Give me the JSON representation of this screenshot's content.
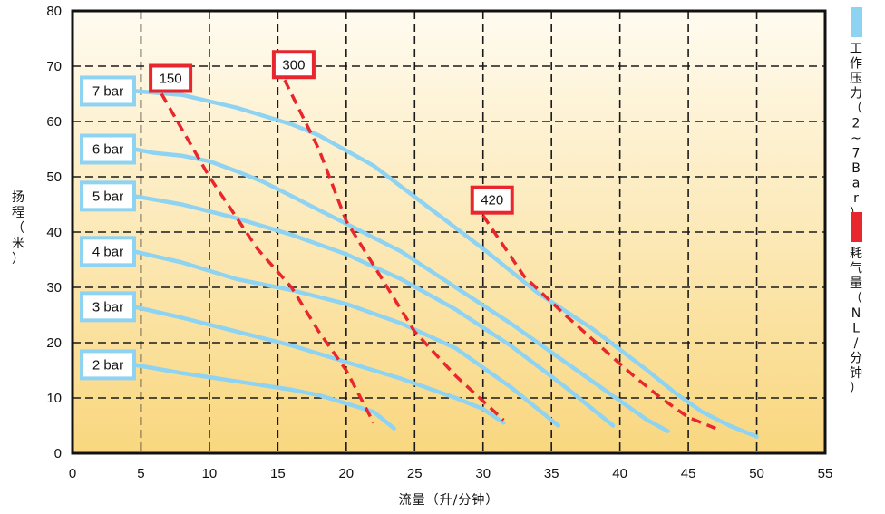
{
  "chart_data": {
    "type": "line",
    "xlabel": "流量（升/分钟）",
    "ylabel": "扬程（米）",
    "xlim": [
      0,
      55
    ],
    "ylim": [
      0,
      80
    ],
    "xticks": [
      "0",
      "5",
      "10",
      "15",
      "20",
      "25",
      "30",
      "35",
      "40",
      "45",
      "50",
      "55"
    ],
    "yticks": [
      "0",
      "10",
      "20",
      "30",
      "40",
      "50",
      "60",
      "70",
      "80"
    ],
    "grid": "dashed",
    "legend": [
      {
        "label": "工作压力（2~7Bar）",
        "color": "#8fd3f2"
      },
      {
        "label": "耗气量（NL/分钟）",
        "color": "#e8262d"
      }
    ],
    "pressure_series": [
      {
        "name": "7 bar",
        "points": [
          [
            4.5,
            65.5
          ],
          [
            8,
            64.8
          ],
          [
            12,
            62.5
          ],
          [
            16,
            59.5
          ],
          [
            18,
            57.5
          ],
          [
            22,
            52
          ],
          [
            26,
            44.5
          ],
          [
            30,
            37
          ],
          [
            34,
            29
          ],
          [
            38,
            22.5
          ],
          [
            42,
            15
          ],
          [
            44,
            11
          ],
          [
            46,
            7.5
          ],
          [
            48,
            5
          ],
          [
            50,
            3
          ]
        ]
      },
      {
        "name": "6 bar",
        "points": [
          [
            4.5,
            55
          ],
          [
            6,
            54.3
          ],
          [
            8,
            53.8
          ],
          [
            10,
            52.8
          ],
          [
            12,
            51
          ],
          [
            14,
            49
          ],
          [
            16,
            46.5
          ],
          [
            18,
            44
          ],
          [
            20,
            41.5
          ],
          [
            24,
            36.5
          ],
          [
            28,
            30
          ],
          [
            32,
            23.5
          ],
          [
            36,
            16.5
          ],
          [
            40,
            9.5
          ],
          [
            42,
            6
          ],
          [
            43.5,
            4
          ]
        ]
      },
      {
        "name": "5 bar",
        "points": [
          [
            4.5,
            46.5
          ],
          [
            8,
            45
          ],
          [
            12,
            42.5
          ],
          [
            16,
            39.5
          ],
          [
            20,
            36
          ],
          [
            24,
            31.5
          ],
          [
            28,
            26
          ],
          [
            32,
            19.5
          ],
          [
            36,
            12
          ],
          [
            38,
            8
          ],
          [
            39.5,
            5
          ]
        ]
      },
      {
        "name": "4 bar",
        "points": [
          [
            4.5,
            36.5
          ],
          [
            8,
            34.5
          ],
          [
            12,
            31.5
          ],
          [
            16,
            29.5
          ],
          [
            20,
            27
          ],
          [
            24,
            23.5
          ],
          [
            28,
            19
          ],
          [
            32,
            12
          ],
          [
            34,
            8
          ],
          [
            35.5,
            5
          ]
        ]
      },
      {
        "name": "3 bar",
        "points": [
          [
            4.5,
            26.5
          ],
          [
            8,
            24.5
          ],
          [
            12,
            22
          ],
          [
            16,
            19.5
          ],
          [
            20,
            16.5
          ],
          [
            24,
            13.5
          ],
          [
            28,
            10
          ],
          [
            30,
            8
          ],
          [
            31.5,
            5.5
          ]
        ]
      },
      {
        "name": "2 bar",
        "points": [
          [
            4.5,
            16
          ],
          [
            8,
            14.5
          ],
          [
            12,
            13
          ],
          [
            16,
            11.5
          ],
          [
            18,
            10.5
          ],
          [
            20,
            9
          ],
          [
            22,
            7.5
          ],
          [
            23.5,
            4.5
          ]
        ]
      }
    ],
    "consumption_series": [
      {
        "name": "150",
        "points": [
          [
            6.5,
            65
          ],
          [
            10,
            50
          ],
          [
            13.5,
            37
          ],
          [
            16,
            30
          ],
          [
            18,
            22
          ],
          [
            20,
            15
          ],
          [
            22,
            5.5
          ]
        ]
      },
      {
        "name": "300",
        "points": [
          [
            15.5,
            67.5
          ],
          [
            18,
            55
          ],
          [
            20,
            42
          ],
          [
            23,
            30
          ],
          [
            25,
            22
          ],
          [
            28,
            14
          ],
          [
            31.5,
            6
          ]
        ]
      },
      {
        "name": "420",
        "points": [
          [
            30,
            43
          ],
          [
            33,
            32
          ],
          [
            36,
            25
          ],
          [
            38.5,
            19.5
          ],
          [
            41,
            14
          ],
          [
            43,
            10
          ],
          [
            45,
            6.5
          ],
          [
            47,
            4.5
          ]
        ]
      }
    ],
    "pressure_labels": [
      "7 bar",
      "6 bar",
      "5 bar",
      "4 bar",
      "3 bar",
      "2 bar"
    ],
    "consumption_labels": [
      "150",
      "300",
      "420"
    ]
  }
}
